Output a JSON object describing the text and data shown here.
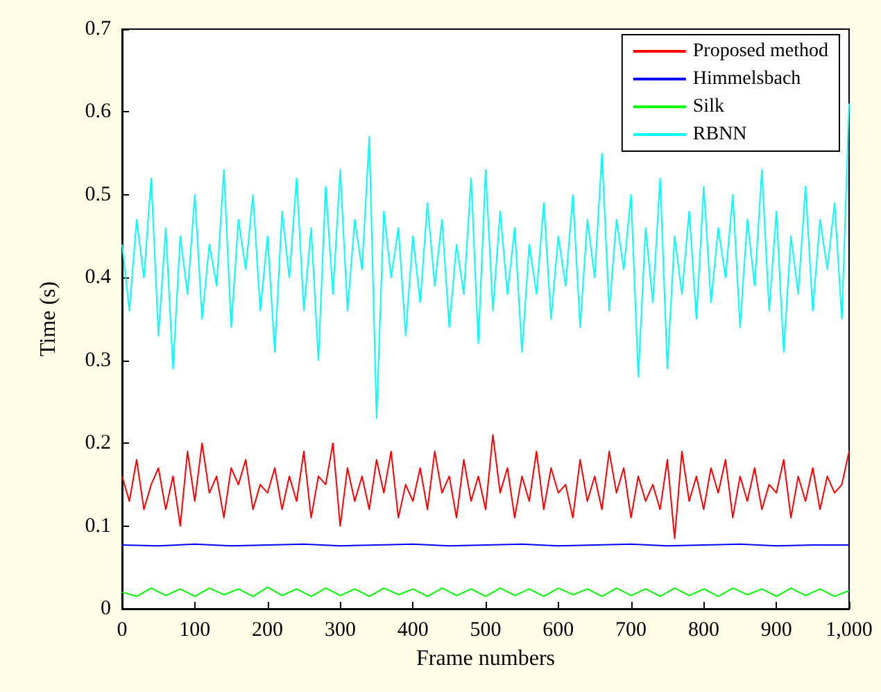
{
  "chart_data": {
    "type": "line",
    "xlabel": "Frame numbers",
    "ylabel": "Time (s)",
    "xlim": [
      0,
      1000
    ],
    "xticks": [
      0,
      100,
      200,
      300,
      400,
      500,
      600,
      700,
      800,
      900,
      {
        "value": 1000,
        "label": "1,000"
      }
    ],
    "ylim": [
      0,
      0.7
    ],
    "yticks": [
      0,
      0.1,
      0.2,
      0.3,
      0.4,
      0.5,
      0.6,
      0.7
    ],
    "grid": false,
    "legend": "top right",
    "marker": "none",
    "line_style": "solid",
    "series": [
      {
        "name": "RBNN",
        "color": "#00ffff",
        "x": [
          0,
          10,
          20,
          30,
          40,
          50,
          60,
          70,
          80,
          90,
          100,
          110,
          120,
          130,
          140,
          150,
          160,
          170,
          180,
          190,
          200,
          210,
          220,
          230,
          240,
          250,
          260,
          270,
          280,
          290,
          300,
          310,
          320,
          330,
          340,
          350,
          360,
          370,
          380,
          390,
          400,
          410,
          420,
          430,
          440,
          450,
          460,
          470,
          480,
          490,
          500,
          510,
          520,
          530,
          540,
          550,
          560,
          570,
          580,
          590,
          600,
          610,
          620,
          630,
          640,
          650,
          660,
          670,
          680,
          690,
          700,
          710,
          720,
          730,
          740,
          750,
          760,
          770,
          780,
          790,
          800,
          810,
          820,
          830,
          840,
          850,
          860,
          870,
          880,
          890,
          900,
          910,
          920,
          930,
          940,
          950,
          960,
          970,
          980,
          990,
          1000
        ],
        "values": [
          0.44,
          0.36,
          0.47,
          0.4,
          0.52,
          0.33,
          0.46,
          0.29,
          0.45,
          0.38,
          0.5,
          0.35,
          0.44,
          0.39,
          0.53,
          0.34,
          0.47,
          0.41,
          0.5,
          0.36,
          0.45,
          0.31,
          0.48,
          0.4,
          0.52,
          0.36,
          0.46,
          0.3,
          0.51,
          0.38,
          0.53,
          0.36,
          0.47,
          0.41,
          0.57,
          0.23,
          0.48,
          0.4,
          0.46,
          0.33,
          0.45,
          0.37,
          0.49,
          0.39,
          0.47,
          0.34,
          0.44,
          0.38,
          0.52,
          0.32,
          0.53,
          0.36,
          0.48,
          0.38,
          0.46,
          0.31,
          0.44,
          0.38,
          0.49,
          0.35,
          0.45,
          0.39,
          0.5,
          0.34,
          0.47,
          0.4,
          0.55,
          0.36,
          0.47,
          0.41,
          0.5,
          0.28,
          0.46,
          0.37,
          0.52,
          0.29,
          0.45,
          0.38,
          0.48,
          0.35,
          0.51,
          0.37,
          0.46,
          0.4,
          0.5,
          0.34,
          0.47,
          0.39,
          0.53,
          0.36,
          0.48,
          0.31,
          0.45,
          0.38,
          0.51,
          0.36,
          0.47,
          0.41,
          0.49,
          0.35,
          0.61
        ]
      },
      {
        "name": "Proposed method",
        "color": "#ff0000",
        "x": [
          0,
          10,
          20,
          30,
          40,
          50,
          60,
          70,
          80,
          90,
          100,
          110,
          120,
          130,
          140,
          150,
          160,
          170,
          180,
          190,
          200,
          210,
          220,
          230,
          240,
          250,
          260,
          270,
          280,
          290,
          300,
          310,
          320,
          330,
          340,
          350,
          360,
          370,
          380,
          390,
          400,
          410,
          420,
          430,
          440,
          450,
          460,
          470,
          480,
          490,
          500,
          510,
          520,
          530,
          540,
          550,
          560,
          570,
          580,
          590,
          600,
          610,
          620,
          630,
          640,
          650,
          660,
          670,
          680,
          690,
          700,
          710,
          720,
          730,
          740,
          750,
          760,
          770,
          780,
          790,
          800,
          810,
          820,
          830,
          840,
          850,
          860,
          870,
          880,
          890,
          900,
          910,
          920,
          930,
          940,
          950,
          960,
          970,
          980,
          990,
          1000
        ],
        "values": [
          0.16,
          0.13,
          0.18,
          0.12,
          0.15,
          0.17,
          0.12,
          0.16,
          0.1,
          0.19,
          0.13,
          0.2,
          0.14,
          0.16,
          0.11,
          0.17,
          0.15,
          0.18,
          0.12,
          0.15,
          0.14,
          0.17,
          0.12,
          0.16,
          0.13,
          0.19,
          0.11,
          0.16,
          0.15,
          0.2,
          0.1,
          0.17,
          0.13,
          0.16,
          0.12,
          0.18,
          0.14,
          0.19,
          0.11,
          0.15,
          0.13,
          0.17,
          0.12,
          0.19,
          0.14,
          0.16,
          0.11,
          0.18,
          0.13,
          0.16,
          0.12,
          0.21,
          0.14,
          0.17,
          0.11,
          0.16,
          0.13,
          0.19,
          0.12,
          0.17,
          0.14,
          0.15,
          0.11,
          0.18,
          0.13,
          0.16,
          0.12,
          0.19,
          0.14,
          0.17,
          0.11,
          0.16,
          0.13,
          0.15,
          0.12,
          0.18,
          0.085,
          0.19,
          0.13,
          0.16,
          0.12,
          0.17,
          0.14,
          0.18,
          0.11,
          0.16,
          0.13,
          0.17,
          0.12,
          0.15,
          0.14,
          0.18,
          0.11,
          0.16,
          0.13,
          0.17,
          0.12,
          0.16,
          0.14,
          0.15,
          0.19
        ]
      },
      {
        "name": "Himmelsbach",
        "color": "#0000ff",
        "x": [
          0,
          50,
          100,
          150,
          200,
          250,
          300,
          350,
          400,
          450,
          500,
          550,
          600,
          650,
          700,
          750,
          800,
          850,
          900,
          950,
          1000
        ],
        "values": [
          0.077,
          0.076,
          0.078,
          0.076,
          0.077,
          0.078,
          0.076,
          0.077,
          0.078,
          0.076,
          0.077,
          0.078,
          0.076,
          0.077,
          0.078,
          0.076,
          0.077,
          0.078,
          0.076,
          0.077,
          0.077
        ]
      },
      {
        "name": "Silk",
        "color": "#00ff00",
        "x": [
          0,
          20,
          40,
          60,
          80,
          100,
          120,
          140,
          160,
          180,
          200,
          220,
          240,
          260,
          280,
          300,
          320,
          340,
          360,
          380,
          400,
          420,
          440,
          460,
          480,
          500,
          520,
          540,
          560,
          580,
          600,
          620,
          640,
          660,
          680,
          700,
          720,
          740,
          760,
          780,
          800,
          820,
          840,
          860,
          880,
          900,
          920,
          940,
          960,
          980,
          1000
        ],
        "values": [
          0.02,
          0.015,
          0.025,
          0.016,
          0.024,
          0.015,
          0.025,
          0.017,
          0.024,
          0.015,
          0.026,
          0.016,
          0.024,
          0.015,
          0.025,
          0.016,
          0.024,
          0.015,
          0.025,
          0.017,
          0.024,
          0.015,
          0.025,
          0.016,
          0.024,
          0.015,
          0.025,
          0.016,
          0.024,
          0.015,
          0.025,
          0.017,
          0.024,
          0.015,
          0.025,
          0.016,
          0.024,
          0.015,
          0.025,
          0.016,
          0.024,
          0.015,
          0.025,
          0.017,
          0.024,
          0.015,
          0.025,
          0.016,
          0.024,
          0.015,
          0.022
        ]
      }
    ]
  }
}
